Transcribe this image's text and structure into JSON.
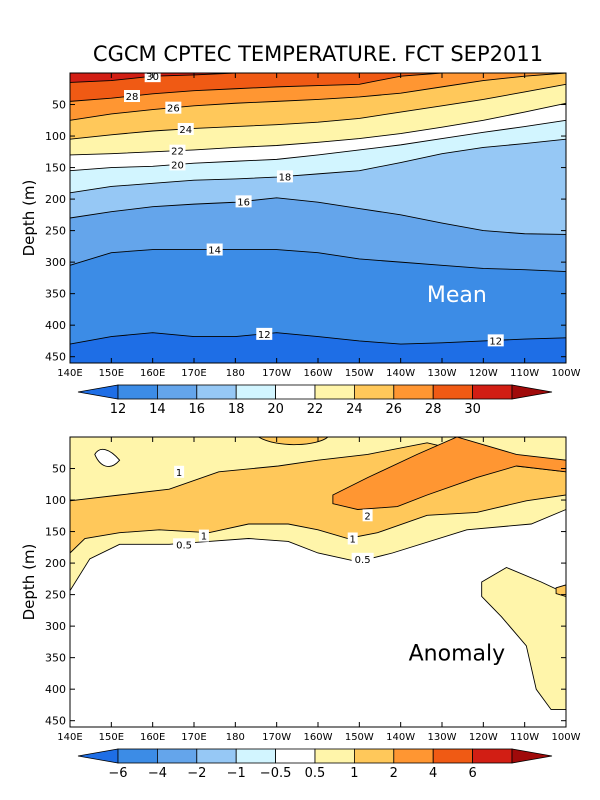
{
  "title": "CGCM CPTEC TEMPERATURE. FCT SEP2011",
  "chart_data": [
    {
      "type": "contour",
      "panel_label": "Mean",
      "panel_label_color": "#ffffff",
      "ylabel": "Depth (m)",
      "xlabel": "",
      "x_ticks": [
        "140E",
        "150E",
        "160E",
        "170E",
        "180",
        "170W",
        "160W",
        "150W",
        "140W",
        "130W",
        "120W",
        "110W",
        "100W"
      ],
      "y_ticks": [
        50,
        100,
        150,
        200,
        250,
        300,
        350,
        400,
        450
      ],
      "ylim": [
        460,
        0
      ],
      "colorbar_labels": [
        "12",
        "14",
        "16",
        "18",
        "20",
        "22",
        "24",
        "26",
        "28",
        "30"
      ],
      "colorbar_colors": [
        "#1e6ee6",
        "#3c8ce6",
        "#64a5eb",
        "#96c8f5",
        "#d2f5ff",
        "#ffffff",
        "#fff5aa",
        "#ffc85a",
        "#ff9632",
        "#f05a14",
        "#d21e14",
        "#a00a0a"
      ],
      "contours": [
        {
          "level": 30,
          "label": "30",
          "depths": [
            15,
            12,
            5,
            3,
            0,
            0,
            0,
            0,
            0,
            0,
            0,
            0,
            0
          ]
        },
        {
          "level": 28,
          "label": "28",
          "depths": [
            45,
            40,
            33,
            28,
            25,
            22,
            20,
            18,
            5,
            0,
            0,
            0,
            0
          ]
        },
        {
          "level": 26,
          "label": "26",
          "depths": [
            75,
            65,
            58,
            52,
            48,
            45,
            42,
            38,
            32,
            22,
            12,
            5,
            0
          ]
        },
        {
          "level": 24,
          "label": "24",
          "depths": [
            105,
            98,
            92,
            88,
            85,
            82,
            78,
            72,
            62,
            52,
            42,
            30,
            18
          ]
        },
        {
          "level": 22,
          "label": "22",
          "depths": [
            130,
            128,
            125,
            122,
            118,
            115,
            110,
            104,
            96,
            86,
            75,
            62,
            48
          ]
        },
        {
          "level": 20,
          "label": "20",
          "depths": [
            155,
            150,
            148,
            143,
            140,
            137,
            130,
            122,
            114,
            104,
            94,
            85,
            75
          ]
        },
        {
          "level": 18,
          "label": "18",
          "depths": [
            190,
            180,
            175,
            170,
            168,
            165,
            160,
            155,
            142,
            128,
            118,
            112,
            105
          ]
        },
        {
          "level": 16,
          "label": "16",
          "depths": [
            230,
            220,
            212,
            208,
            205,
            198,
            205,
            215,
            225,
            238,
            250,
            255,
            256
          ]
        },
        {
          "level": 14,
          "label": "14",
          "depths": [
            305,
            285,
            280,
            280,
            280,
            280,
            285,
            295,
            300,
            305,
            310,
            312,
            315
          ]
        },
        {
          "level": 12,
          "label": "12",
          "depths": [
            430,
            418,
            412,
            418,
            418,
            412,
            418,
            425,
            430,
            428,
            425,
            422,
            420
          ]
        }
      ]
    },
    {
      "type": "contour",
      "panel_label": "Anomaly",
      "panel_label_color": "#000000",
      "ylabel": "Depth (m)",
      "xlabel": "",
      "x_ticks": [
        "140E",
        "150E",
        "160E",
        "170E",
        "180",
        "170W",
        "160W",
        "150W",
        "140W",
        "130W",
        "120W",
        "110W",
        "100W"
      ],
      "y_ticks": [
        50,
        100,
        150,
        200,
        250,
        300,
        350,
        400,
        450
      ],
      "ylim": [
        460,
        0
      ],
      "colorbar_labels": [
        "−6",
        "−4",
        "−2",
        "−1",
        "−0.5",
        "0.5",
        "1",
        "2",
        "4",
        "6"
      ],
      "colorbar_colors": [
        "#1e6ee6",
        "#3c8ce6",
        "#64a5eb",
        "#96c8f5",
        "#d2f5ff",
        "#ffffff",
        "#fff5aa",
        "#ffc85a",
        "#ff9632",
        "#f05a14",
        "#d21e14",
        "#a00a0a"
      ],
      "contour_labels": [
        "1",
        "1",
        "0.5",
        "2",
        "1",
        "0.5"
      ]
    }
  ]
}
